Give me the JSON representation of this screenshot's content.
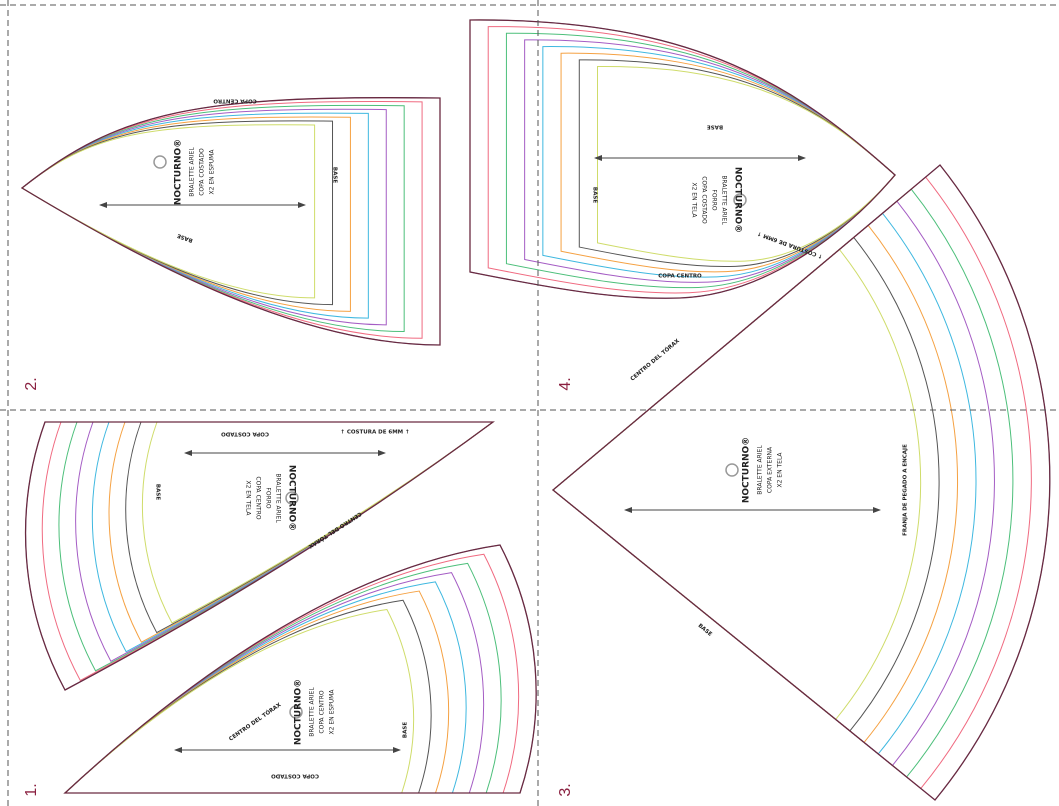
{
  "pieces": [
    {
      "number": "1.",
      "brand": "NOCTURNO®",
      "lines": [
        "BRALETTE ARIEL",
        "COPA CENTRO",
        "X2 EN ESPUMA"
      ],
      "labels": [
        "CENTRO DEL TÓRAX",
        "BASE",
        "COPA COSTADO"
      ]
    },
    {
      "brand": "NOCTURNO®",
      "lines": [
        "BRALETTE ARIEL",
        "FORRO",
        "COPA CENTRO",
        "X2 EN TELA"
      ],
      "labels": [
        "COPA COSTADO",
        "↑ COSTURA DE 6MM ↑",
        "BASE",
        "CENTRO DEL TÓRAX"
      ]
    },
    {
      "number": "2.",
      "brand": "NOCTURNO®",
      "lines": [
        "BRALETTE ARIEL",
        "COPA COSTADO",
        "X2 EN ESPUMA"
      ],
      "labels": [
        "COPA CENTRO",
        "BASE",
        "BASE"
      ]
    },
    {
      "number": "4.",
      "brand": "NOCTURNO®",
      "lines": [
        "BRALETTE ARIEL",
        "FORRO",
        "COPA COSTADO",
        "X2 EN TELA"
      ],
      "labels": [
        "COPA CENTRO",
        "↑ COSTURA DE 6MM ↑",
        "BASE",
        "BASE"
      ]
    },
    {
      "number": "3.",
      "brand": "NOCTURNO®",
      "lines": [
        "BRALETTE ARIEL",
        "COPA EXTERNA",
        "X2 EN TELA"
      ],
      "labels": [
        "CENTRO DEL TÓRAX",
        "FRANJA DE PEGADO A ENCAJE",
        "BASE"
      ]
    }
  ]
}
